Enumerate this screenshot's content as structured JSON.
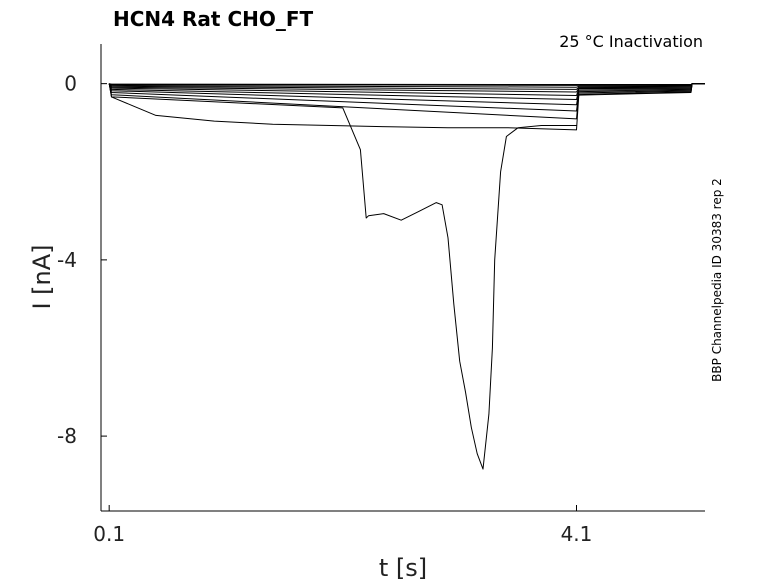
{
  "chart_data": {
    "type": "line",
    "title": "HCN4  Rat  CHO_FT",
    "annotation": "25 °C  Inactivation",
    "side_label": "BBP Channelpedia ID 30383 rep 2",
    "xlabel": "t [s]",
    "ylabel": "I [nA]",
    "x_ticks": [
      0.1,
      4.1
    ],
    "x_tick_labels": [
      "0.1",
      "4.1"
    ],
    "y_ticks": [
      0,
      -4,
      -8
    ],
    "y_tick_labels": [
      "0",
      "-4",
      "-8"
    ],
    "xlim": [
      0.03,
      5.2
    ],
    "ylim": [
      -9.7,
      0.9
    ],
    "grid": false,
    "line_color": "#000000",
    "series": [
      {
        "x": [
          0.1,
          0.12,
          4.1,
          4.12,
          5.08,
          5.09,
          5.2
        ],
        "y": [
          0.0,
          -0.01,
          -0.02,
          -0.02,
          -0.02,
          0.0,
          0.0
        ]
      },
      {
        "x": [
          0.1,
          0.12,
          4.1,
          4.12,
          5.08,
          5.09,
          5.2
        ],
        "y": [
          0.0,
          -0.02,
          -0.04,
          -0.04,
          -0.03,
          0.0,
          0.0
        ]
      },
      {
        "x": [
          0.1,
          0.12,
          4.1,
          4.12,
          5.08,
          5.09,
          5.2
        ],
        "y": [
          0.0,
          -0.04,
          -0.08,
          -0.06,
          -0.05,
          0.0,
          0.0
        ]
      },
      {
        "x": [
          0.1,
          0.12,
          4.1,
          4.12,
          5.08,
          5.09,
          5.2
        ],
        "y": [
          0.0,
          -0.06,
          -0.13,
          -0.08,
          -0.07,
          0.0,
          0.0
        ]
      },
      {
        "x": [
          0.1,
          0.12,
          4.1,
          4.12,
          5.08,
          5.09,
          5.2
        ],
        "y": [
          0.0,
          -0.08,
          -0.19,
          -0.1,
          -0.09,
          0.0,
          0.0
        ]
      },
      {
        "x": [
          0.1,
          0.12,
          4.1,
          4.12,
          5.08,
          5.09,
          5.2
        ],
        "y": [
          0.0,
          -0.1,
          -0.27,
          -0.12,
          -0.11,
          0.0,
          0.0
        ]
      },
      {
        "x": [
          0.1,
          0.12,
          4.1,
          4.12,
          5.08,
          5.09,
          5.2
        ],
        "y": [
          0.0,
          -0.13,
          -0.36,
          -0.15,
          -0.13,
          0.0,
          0.0
        ]
      },
      {
        "x": [
          0.1,
          0.12,
          4.1,
          4.12,
          5.08,
          5.09,
          5.2
        ],
        "y": [
          0.0,
          -0.16,
          -0.48,
          -0.18,
          -0.15,
          0.0,
          0.0
        ]
      },
      {
        "x": [
          0.1,
          0.12,
          4.1,
          4.12,
          5.08,
          5.09,
          5.2
        ],
        "y": [
          0.0,
          -0.2,
          -0.62,
          -0.21,
          -0.17,
          0.0,
          0.0
        ]
      },
      {
        "x": [
          0.1,
          0.12,
          4.1,
          4.12,
          5.08,
          5.09,
          5.2
        ],
        "y": [
          0.0,
          -0.25,
          -0.8,
          -0.24,
          -0.19,
          0.0,
          0.0
        ]
      },
      {
        "x": [
          0.1,
          0.12,
          0.3,
          0.5,
          1.0,
          1.5,
          2.0,
          2.5,
          3.0,
          3.5,
          4.1,
          4.12,
          5.08,
          5.09,
          5.2
        ],
        "y": [
          0.0,
          -0.3,
          -0.5,
          -0.72,
          -0.85,
          -0.92,
          -0.95,
          -0.98,
          -1.0,
          -1.0,
          -1.05,
          -0.26,
          -0.2,
          0.0,
          0.0
        ]
      },
      {
        "x": [
          0.1,
          0.12,
          2.1,
          2.25,
          2.3,
          2.32,
          2.45,
          2.6,
          2.75,
          2.9,
          2.95,
          3.0,
          3.05,
          3.1,
          3.15,
          3.2,
          3.25,
          3.3,
          3.35,
          3.38,
          3.4,
          3.45,
          3.5,
          3.6,
          3.8,
          4.1
        ],
        "y": [
          0.0,
          -0.3,
          -0.55,
          -1.5,
          -3.05,
          -3.0,
          -2.95,
          -3.1,
          -2.9,
          -2.7,
          -2.75,
          -3.5,
          -5.0,
          -6.3,
          -7.0,
          -7.8,
          -8.4,
          -8.75,
          -7.5,
          -6.0,
          -4.0,
          -2.0,
          -1.2,
          -1.0,
          -0.95,
          -0.95
        ]
      }
    ]
  }
}
